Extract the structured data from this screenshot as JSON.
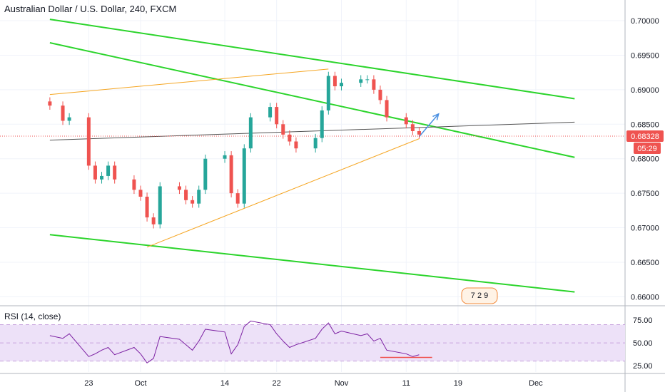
{
  "header": {
    "symbol_title": "Australian Dollar / U.S. Dollar, 240, FXCM"
  },
  "rsi_panel": {
    "title": "RSI (14, close)"
  },
  "colors": {
    "bull": "#26a69a",
    "bear": "#ef5350",
    "channel": "#2bd42b",
    "trend": "#f5a623",
    "rsi_line": "#7b1fa2",
    "rsi_band": "#ede1f8",
    "price_tag": "#ef5350",
    "projection_arrow": "#4a90e2"
  },
  "chart_data": [
    {
      "type": "candlestick",
      "symbol": "Australian Dollar / U.S. Dollar",
      "interval": "240",
      "source": "FXCM",
      "x": [
        "23",
        "Oct",
        "14",
        "22",
        "Nov",
        "11",
        "19",
        "Dec"
      ],
      "y_ticks": [
        "0.70000",
        "0.69500",
        "0.69000",
        "0.68500",
        "0.68000",
        "0.67500",
        "0.67000",
        "0.66500",
        "0.66000"
      ],
      "ylim": [
        0.6588,
        0.703
      ],
      "last_price": "0.68328",
      "countdown": "05:29",
      "watermark": "7 2 9",
      "series": [
        {
          "values": [
            [
              "2019-09-17",
              0.6877
            ],
            [
              "2019-09-19",
              0.6855
            ],
            [
              "2019-09-20",
              0.686
            ],
            [
              "2019-09-23",
              0.679
            ],
            [
              "2019-09-24",
              0.677
            ],
            [
              "2019-09-25",
              0.6775
            ],
            [
              "2019-09-26",
              0.679
            ],
            [
              "2019-09-27",
              0.677
            ],
            [
              "2019-09-30",
              0.6755
            ],
            [
              "2019-10-01",
              0.6745
            ],
            [
              "2019-10-02",
              0.6715
            ],
            [
              "2019-10-03",
              0.6705
            ],
            [
              "2019-10-04",
              0.676
            ],
            [
              "2019-10-07",
              0.6755
            ],
            [
              "2019-10-08",
              0.674
            ],
            [
              "2019-10-09",
              0.6735
            ],
            [
              "2019-10-10",
              0.6755
            ],
            [
              "2019-10-11",
              0.68
            ],
            [
              "2019-10-14",
              0.6805
            ],
            [
              "2019-10-15",
              0.675
            ],
            [
              "2019-10-16",
              0.6735
            ],
            [
              "2019-10-17",
              0.6815
            ],
            [
              "2019-10-18",
              0.686
            ],
            [
              "2019-10-21",
              0.6875
            ],
            [
              "2019-10-22",
              0.685
            ],
            [
              "2019-10-23",
              0.6835
            ],
            [
              "2019-10-24",
              0.6825
            ],
            [
              "2019-10-25",
              0.6815
            ],
            [
              "2019-10-28",
              0.683
            ],
            [
              "2019-10-29",
              0.687
            ],
            [
              "2019-10-30",
              0.692
            ],
            [
              "2019-10-31",
              0.6905
            ],
            [
              "2019-11-01",
              0.691
            ],
            [
              "2019-11-04",
              0.6915
            ],
            [
              "2019-11-05",
              0.6915
            ],
            [
              "2019-11-06",
              0.69
            ],
            [
              "2019-11-07",
              0.6885
            ],
            [
              "2019-11-08",
              0.686
            ],
            [
              "2019-11-11",
              0.685
            ],
            [
              "2019-11-12",
              0.684
            ],
            [
              "2019-11-13",
              0.6835
            ]
          ]
        }
      ],
      "annotations": [
        {
          "type": "channel_line",
          "color": "green",
          "from": [
            "2019-09-17",
            0.7002
          ],
          "to": [
            "2019-12-07",
            0.6887
          ]
        },
        {
          "type": "channel_line",
          "color": "green",
          "from": [
            "2019-09-17",
            0.6968
          ],
          "to": [
            "2019-12-07",
            0.6802
          ]
        },
        {
          "type": "channel_line",
          "color": "green",
          "from": [
            "2019-09-17",
            0.669
          ],
          "to": [
            "2019-12-07",
            0.6607
          ]
        },
        {
          "type": "trend_line",
          "color": "orange",
          "from": [
            "2019-09-17",
            0.6893
          ],
          "to": [
            "2019-10-30",
            0.693
          ]
        },
        {
          "type": "trend_line",
          "color": "orange",
          "from": [
            "2019-10-02",
            0.6672
          ],
          "to": [
            "2019-11-13",
            0.6829
          ]
        },
        {
          "type": "trend_line",
          "color": "black",
          "from": [
            "2019-09-17",
            0.6827
          ],
          "to": [
            "2019-12-07",
            0.6853
          ]
        },
        {
          "type": "price_line",
          "color": "red",
          "dotted": true,
          "y": 0.68328
        },
        {
          "type": "arrow",
          "color": "blue",
          "from": [
            "2019-11-13",
            0.6832
          ],
          "to": [
            "2019-11-16",
            0.6865
          ]
        }
      ]
    },
    {
      "type": "line",
      "title": "RSI (14, close)",
      "y_ticks": [
        "75.00",
        "50.00",
        "25.00"
      ],
      "ylim": [
        18,
        90
      ],
      "band": [
        30,
        70
      ],
      "series": [
        {
          "values": [
            [
              "2019-09-17",
              58
            ],
            [
              "2019-09-19",
              55
            ],
            [
              "2019-09-20",
              60
            ],
            [
              "2019-09-23",
              35
            ],
            [
              "2019-09-24",
              38
            ],
            [
              "2019-09-25",
              42
            ],
            [
              "2019-09-26",
              45
            ],
            [
              "2019-09-27",
              37
            ],
            [
              "2019-09-30",
              45
            ],
            [
              "2019-10-01",
              38
            ],
            [
              "2019-10-02",
              28
            ],
            [
              "2019-10-03",
              33
            ],
            [
              "2019-10-04",
              57
            ],
            [
              "2019-10-07",
              54
            ],
            [
              "2019-10-08",
              48
            ],
            [
              "2019-10-09",
              42
            ],
            [
              "2019-10-10",
              52
            ],
            [
              "2019-10-11",
              65
            ],
            [
              "2019-10-14",
              62
            ],
            [
              "2019-10-15",
              38
            ],
            [
              "2019-10-16",
              48
            ],
            [
              "2019-10-17",
              68
            ],
            [
              "2019-10-18",
              74
            ],
            [
              "2019-10-21",
              70
            ],
            [
              "2019-10-22",
              60
            ],
            [
              "2019-10-23",
              52
            ],
            [
              "2019-10-24",
              45
            ],
            [
              "2019-10-25",
              48
            ],
            [
              "2019-10-28",
              55
            ],
            [
              "2019-10-29",
              65
            ],
            [
              "2019-10-30",
              72
            ],
            [
              "2019-10-31",
              60
            ],
            [
              "2019-11-01",
              63
            ],
            [
              "2019-11-04",
              58
            ],
            [
              "2019-11-05",
              60
            ],
            [
              "2019-11-06",
              52
            ],
            [
              "2019-11-07",
              55
            ],
            [
              "2019-11-08",
              42
            ],
            [
              "2019-11-11",
              38
            ],
            [
              "2019-11-12",
              35
            ],
            [
              "2019-11-13",
              37
            ]
          ]
        }
      ],
      "annotations": [
        {
          "type": "level_line",
          "color": "red",
          "from": [
            "2019-11-07",
            34
          ],
          "to": [
            "2019-11-15",
            34
          ]
        }
      ]
    }
  ]
}
